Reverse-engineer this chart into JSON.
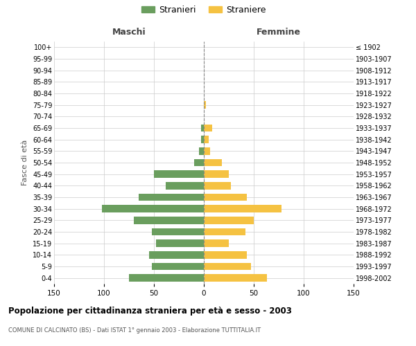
{
  "age_groups": [
    "100+",
    "95-99",
    "90-94",
    "85-89",
    "80-84",
    "75-79",
    "70-74",
    "65-69",
    "60-64",
    "55-59",
    "50-54",
    "45-49",
    "40-44",
    "35-39",
    "30-34",
    "25-29",
    "20-24",
    "15-19",
    "10-14",
    "5-9",
    "0-4"
  ],
  "birth_years": [
    "≤ 1902",
    "1903-1907",
    "1908-1912",
    "1913-1917",
    "1918-1922",
    "1923-1927",
    "1928-1932",
    "1933-1937",
    "1938-1942",
    "1943-1947",
    "1948-1952",
    "1953-1957",
    "1958-1962",
    "1963-1967",
    "1968-1972",
    "1973-1977",
    "1978-1982",
    "1983-1987",
    "1988-1992",
    "1993-1997",
    "1998-2002"
  ],
  "maschi": [
    0,
    0,
    0,
    0,
    0,
    0,
    0,
    3,
    3,
    5,
    10,
    50,
    38,
    65,
    102,
    70,
    52,
    48,
    55,
    52,
    75
  ],
  "femmine": [
    0,
    0,
    0,
    0,
    0,
    2,
    0,
    8,
    5,
    6,
    18,
    25,
    27,
    43,
    78,
    50,
    42,
    25,
    43,
    47,
    63
  ],
  "male_color": "#6a9e5e",
  "female_color": "#f5c242",
  "background_color": "#ffffff",
  "grid_color": "#cccccc",
  "title": "Popolazione per cittadinanza straniera per età e sesso - 2003",
  "subtitle": "COMUNE DI CALCINATO (BS) - Dati ISTAT 1° gennaio 2003 - Elaborazione TUTTITALIA.IT",
  "ylabel": "Fasce di età",
  "xlabel_left": "Maschi",
  "xlabel_right": "Femmine",
  "legend_male": "Stranieri",
  "legend_female": "Straniere",
  "xlim": 150,
  "dashed_line_color": "#888888"
}
